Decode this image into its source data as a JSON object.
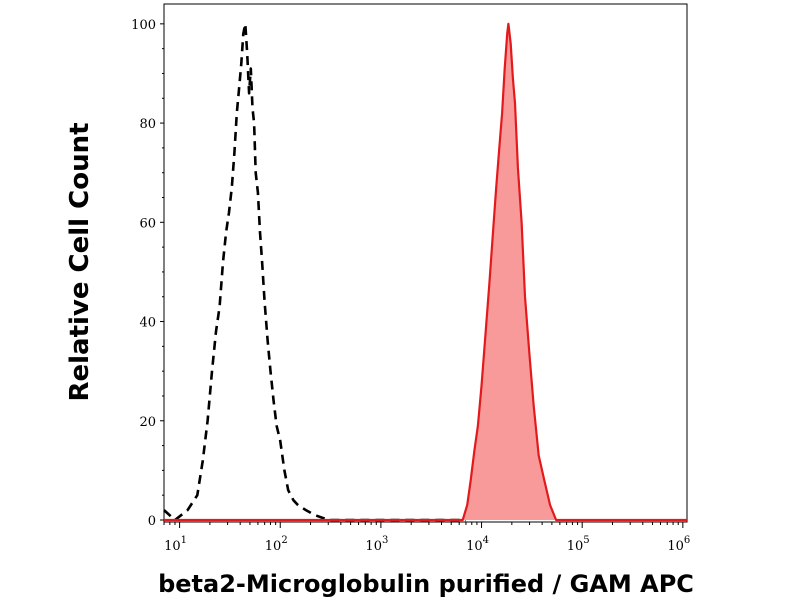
{
  "chart_data": {
    "type": "area",
    "title": "",
    "xlabel": "beta2-Microglobulin purified / GAM APC",
    "ylabel": "Relative Cell Count",
    "x_scale": "log",
    "xlim": [
      7,
      1100000
    ],
    "ylim": [
      0,
      104
    ],
    "x_ticks": [
      {
        "base": "10",
        "exp": "1",
        "value": 10
      },
      {
        "base": "10",
        "exp": "2",
        "value": 100
      },
      {
        "base": "10",
        "exp": "3",
        "value": 1000
      },
      {
        "base": "10",
        "exp": "4",
        "value": 10000
      },
      {
        "base": "10",
        "exp": "5",
        "value": 100000
      },
      {
        "base": "10",
        "exp": "6",
        "value": 1000000
      }
    ],
    "y_ticks": [
      {
        "label": "0",
        "value": 0
      },
      {
        "label": "20",
        "value": 20
      },
      {
        "label": "40",
        "value": 40
      },
      {
        "label": "60",
        "value": 60
      },
      {
        "label": "80",
        "value": 80
      },
      {
        "label": "100",
        "value": 100
      }
    ],
    "grid": false,
    "legend": "none",
    "series": [
      {
        "style": "dashed-line",
        "color": "#000000",
        "points": [
          [
            7,
            2
          ],
          [
            9,
            0
          ],
          [
            12,
            2
          ],
          [
            15,
            5
          ],
          [
            17,
            12
          ],
          [
            19,
            20
          ],
          [
            21,
            30
          ],
          [
            23,
            38
          ],
          [
            25,
            43
          ],
          [
            27,
            52
          ],
          [
            29,
            58
          ],
          [
            31,
            62
          ],
          [
            33,
            67
          ],
          [
            35,
            74
          ],
          [
            37,
            82
          ],
          [
            39,
            87
          ],
          [
            41,
            92
          ],
          [
            43,
            98
          ],
          [
            45,
            100
          ],
          [
            47,
            94
          ],
          [
            49,
            86
          ],
          [
            51,
            91
          ],
          [
            53,
            83
          ],
          [
            55,
            80
          ],
          [
            57,
            70
          ],
          [
            60,
            66
          ],
          [
            63,
            58
          ],
          [
            66,
            52
          ],
          [
            70,
            44
          ],
          [
            75,
            36
          ],
          [
            80,
            30
          ],
          [
            86,
            24
          ],
          [
            92,
            19
          ],
          [
            100,
            16
          ],
          [
            110,
            10
          ],
          [
            120,
            6
          ],
          [
            135,
            4
          ],
          [
            150,
            3
          ],
          [
            180,
            2
          ],
          [
            220,
            1
          ],
          [
            300,
            0
          ],
          [
            1000,
            0
          ],
          [
            5000,
            0
          ],
          [
            7000,
            0
          ]
        ]
      },
      {
        "style": "filled",
        "color": "#e31a1c",
        "fill": "#f99a9a",
        "points": [
          [
            7,
            0
          ],
          [
            1000,
            0
          ],
          [
            6500,
            0
          ],
          [
            7200,
            3
          ],
          [
            7800,
            8
          ],
          [
            8500,
            14
          ],
          [
            9200,
            19
          ],
          [
            10000,
            27
          ],
          [
            11000,
            38
          ],
          [
            12000,
            48
          ],
          [
            13000,
            58
          ],
          [
            14000,
            67
          ],
          [
            15000,
            75
          ],
          [
            16000,
            82
          ],
          [
            17000,
            91
          ],
          [
            18000,
            98
          ],
          [
            18500,
            100
          ],
          [
            19500,
            96
          ],
          [
            20500,
            89
          ],
          [
            21500,
            84
          ],
          [
            23000,
            71
          ],
          [
            25000,
            60
          ],
          [
            27000,
            45
          ],
          [
            30000,
            33
          ],
          [
            33000,
            23
          ],
          [
            37000,
            13
          ],
          [
            42000,
            8
          ],
          [
            48000,
            3
          ],
          [
            55000,
            0
          ],
          [
            100000,
            0
          ],
          [
            1100000,
            0
          ]
        ]
      }
    ]
  }
}
